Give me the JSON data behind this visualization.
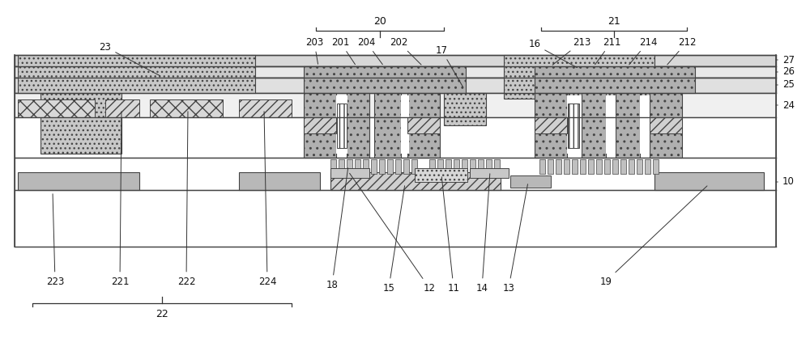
{
  "fig_width": 10.0,
  "fig_height": 4.18,
  "bg_color": "#ffffff",
  "lc": "#444444",
  "dot_gray": "#c0c0c0",
  "dark_dot": "#aaaaaa",
  "xhatch": "#d5d5d5",
  "diag": "#d0d0d0",
  "stripe": "#d8d8d8",
  "med_gray": "#b0b0b0",
  "light_gray": "#e0e0e0",
  "white": "#ffffff"
}
